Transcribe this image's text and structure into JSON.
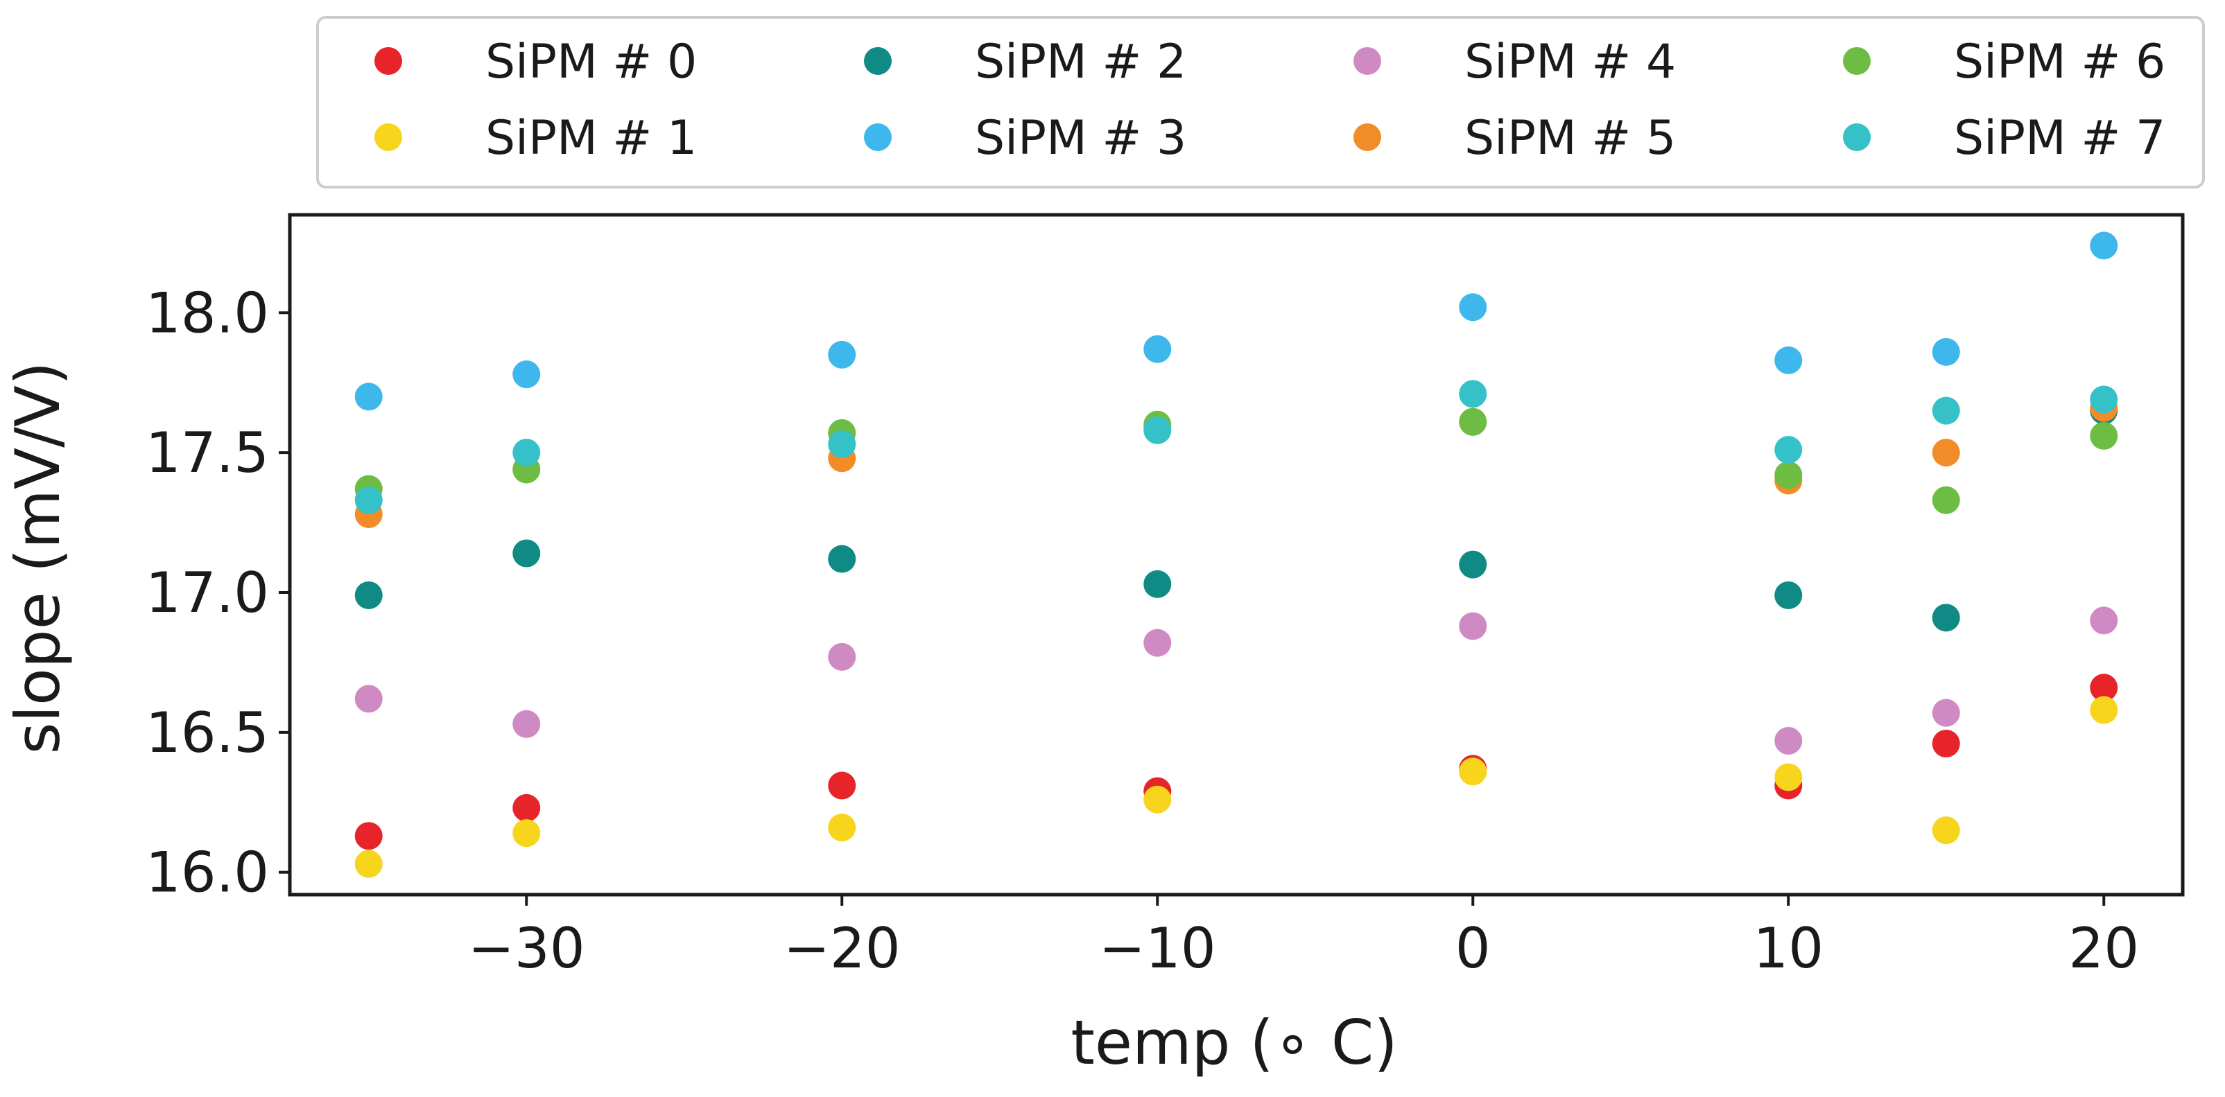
{
  "chart_data": {
    "type": "scatter",
    "title": "",
    "xlabel": "temp (∘ C)",
    "ylabel": "slope (mV/V)",
    "xlim": [
      -37.5,
      22.5
    ],
    "ylim": [
      15.92,
      18.35
    ],
    "xticks": [
      -30,
      -20,
      -10,
      0,
      10,
      20
    ],
    "xtick_labels": [
      "−30",
      "−20",
      "−10",
      "0",
      "10",
      "20"
    ],
    "yticks": [
      16.0,
      16.5,
      17.0,
      17.5,
      18.0
    ],
    "ytick_labels": [
      "16.0",
      "16.5",
      "17.0",
      "17.5",
      "18.0"
    ],
    "grid": false,
    "legend_position": "above plot, 4 columns",
    "x": [
      -35,
      -30,
      -20,
      -10,
      0,
      10,
      15,
      20
    ],
    "series": [
      {
        "name": "SiPM # 0",
        "color": "#e8242b",
        "values": [
          16.13,
          16.23,
          16.31,
          16.29,
          16.37,
          16.31,
          16.46,
          16.66
        ]
      },
      {
        "name": "SiPM # 1",
        "color": "#f7d51c",
        "values": [
          16.03,
          16.14,
          16.16,
          16.26,
          16.36,
          16.34,
          16.15,
          16.58
        ]
      },
      {
        "name": "SiPM # 2",
        "color": "#108a84",
        "values": [
          16.99,
          17.14,
          17.12,
          17.03,
          17.1,
          16.99,
          16.91,
          17.65
        ]
      },
      {
        "name": "SiPM # 3",
        "color": "#3eb8ec",
        "values": [
          17.7,
          17.78,
          17.85,
          17.87,
          18.02,
          17.83,
          17.86,
          18.24
        ]
      },
      {
        "name": "SiPM # 4",
        "color": "#d08ac3",
        "values": [
          16.62,
          16.53,
          16.77,
          16.82,
          16.88,
          16.47,
          16.57,
          16.9
        ]
      },
      {
        "name": "SiPM # 5",
        "color": "#f28c28",
        "values": [
          17.28,
          17.44,
          17.48,
          17.59,
          17.61,
          17.4,
          17.5,
          17.66
        ]
      },
      {
        "name": "SiPM # 6",
        "color": "#6dbd45",
        "values": [
          17.37,
          17.44,
          17.57,
          17.6,
          17.61,
          17.42,
          17.33,
          17.56
        ]
      },
      {
        "name": "SiPM # 7",
        "color": "#35c1c8",
        "values": [
          17.33,
          17.5,
          17.53,
          17.58,
          17.71,
          17.51,
          17.65,
          17.69
        ]
      }
    ]
  }
}
